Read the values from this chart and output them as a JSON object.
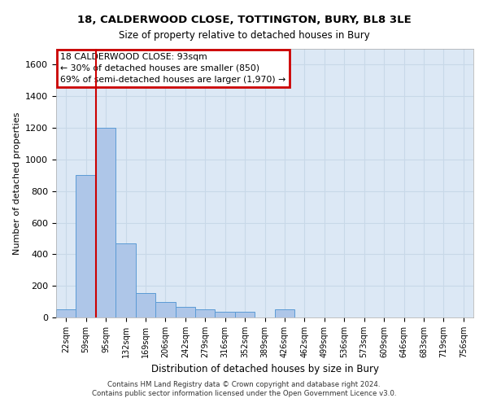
{
  "title_line1": "18, CALDERWOOD CLOSE, TOTTINGTON, BURY, BL8 3LE",
  "title_line2": "Size of property relative to detached houses in Bury",
  "xlabel": "Distribution of detached houses by size in Bury",
  "ylabel": "Number of detached properties",
  "footer": "Contains HM Land Registry data © Crown copyright and database right 2024.\nContains public sector information licensed under the Open Government Licence v3.0.",
  "bin_labels": [
    "22sqm",
    "59sqm",
    "95sqm",
    "132sqm",
    "169sqm",
    "206sqm",
    "242sqm",
    "279sqm",
    "316sqm",
    "352sqm",
    "389sqm",
    "426sqm",
    "462sqm",
    "499sqm",
    "536sqm",
    "573sqm",
    "609sqm",
    "646sqm",
    "683sqm",
    "719sqm",
    "756sqm"
  ],
  "bar_values": [
    50,
    900,
    1200,
    470,
    155,
    100,
    65,
    50,
    35,
    35,
    0,
    50,
    0,
    0,
    0,
    0,
    0,
    0,
    0,
    0,
    0
  ],
  "bar_color": "#aec6e8",
  "bar_edge_color": "#5b9bd5",
  "grid_color": "#c8d8e8",
  "background_color": "#dce8f5",
  "vline_color": "#cc0000",
  "annotation_text": "18 CALDERWOOD CLOSE: 93sqm\n← 30% of detached houses are smaller (850)\n69% of semi-detached houses are larger (1,970) →",
  "annotation_box_color": "#cc0000",
  "annotation_bg": "#ffffff",
  "ylim": [
    0,
    1700
  ],
  "yticks": [
    0,
    200,
    400,
    600,
    800,
    1000,
    1200,
    1400,
    1600
  ]
}
